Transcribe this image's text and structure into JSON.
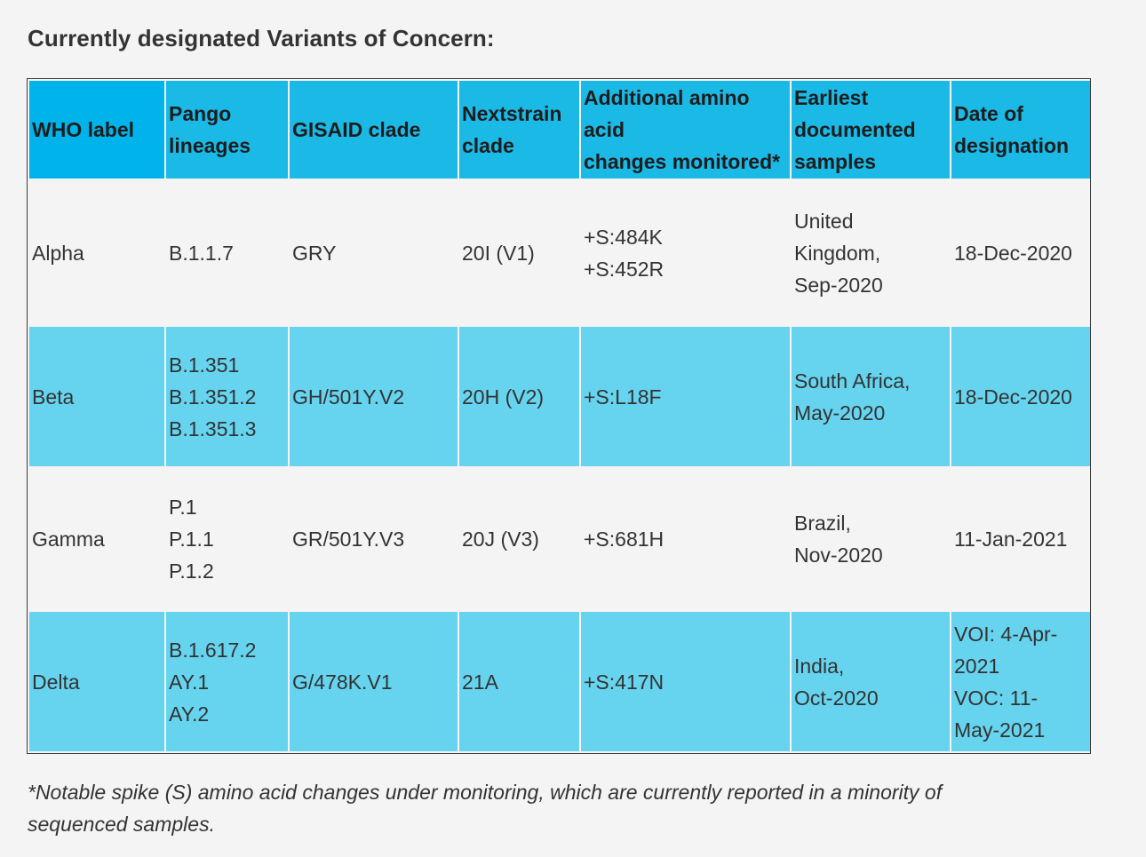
{
  "heading": "Currently designated Variants of Concern:",
  "columns": [
    [
      "WHO label"
    ],
    [
      "Pango",
      "lineages"
    ],
    [
      "GISAID clade"
    ],
    [
      "Nextstrain",
      "clade"
    ],
    [
      "Additional amino",
      "acid",
      "changes monitored*"
    ],
    [
      "Earliest",
      "documented",
      "samples"
    ],
    [
      "Date of",
      "designation"
    ]
  ],
  "rows": [
    {
      "who_label": "Alpha",
      "pango": [
        "B.1.1.7"
      ],
      "gisaid": "GRY",
      "nextstrain": "20I (V1)",
      "amino": [
        "+S:484K",
        "+S:452R"
      ],
      "earliest": [
        "United",
        "Kingdom,",
        "Sep-2020"
      ],
      "designation": [
        "18-Dec-2020"
      ]
    },
    {
      "who_label": "Beta",
      "pango": [
        "B.1.351",
        "B.1.351.2",
        "B.1.351.3"
      ],
      "gisaid": "GH/501Y.V2",
      "nextstrain": "20H (V2)",
      "amino": [
        "+S:L18F"
      ],
      "earliest": [
        "South Africa,",
        "May-2020"
      ],
      "designation": [
        "18-Dec-2020"
      ]
    },
    {
      "who_label": "Gamma",
      "pango": [
        "P.1",
        "P.1.1",
        "P.1.2"
      ],
      "gisaid": "GR/501Y.V3",
      "nextstrain": "20J (V3)",
      "amino": [
        "+S:681H"
      ],
      "earliest": [
        "Brazil,",
        "Nov-2020"
      ],
      "designation": [
        "11-Jan-2021"
      ]
    },
    {
      "who_label": "Delta",
      "pango": [
        "B.1.617.2",
        "AY.1",
        "AY.2"
      ],
      "gisaid": "G/478K.V1",
      "nextstrain": "21A",
      "amino": [
        "+S:417N"
      ],
      "earliest": [
        "India,",
        "Oct-2020"
      ],
      "designation": [
        "VOI: 4-Apr-",
        "2021",
        "VOC: 11-",
        "May-2021"
      ]
    }
  ],
  "footnote": "*Notable spike (S) amino acid changes under monitoring, which are currently reported in a minority of sequenced samples.",
  "colors": {
    "header_bg": "#1ab9e6",
    "tinted_row_bg": "#66d4ef",
    "page_bg": "#f4f4f4",
    "text": "#333333"
  }
}
